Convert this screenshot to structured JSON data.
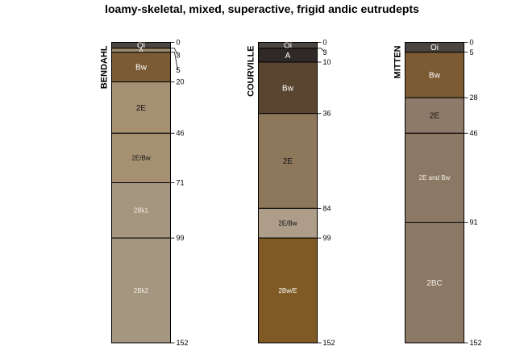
{
  "title": "loamy-skeletal, mixed, superactive, frigid andic eutrudepts",
  "depth_max_cm": 152,
  "profiles": [
    {
      "name": "BENDAHL",
      "horizons": [
        {
          "name": "Oi",
          "top": 0,
          "bottom": 3,
          "color": "#4a4541"
        },
        {
          "name": "A",
          "top": 3,
          "bottom": 5,
          "color": "#9f8c6e"
        },
        {
          "name": "Bw",
          "top": 5,
          "bottom": 20,
          "color": "#7b5a34"
        },
        {
          "name": "2E",
          "top": 20,
          "bottom": 46,
          "color": "#a69072"
        },
        {
          "name": "2E/Bw",
          "top": 46,
          "bottom": 71,
          "color": "#a69072"
        },
        {
          "name": "2Bk1",
          "top": 71,
          "bottom": 99,
          "color": "#a5967f"
        },
        {
          "name": "2Bk2",
          "top": 99,
          "bottom": 152,
          "color": "#a5967f"
        }
      ],
      "depth_labels": [
        {
          "label": "0",
          "depth": 0,
          "text_depth": 0
        },
        {
          "label": "3",
          "depth": 3,
          "text_depth": 6.5
        },
        {
          "label": "5",
          "depth": 5,
          "text_depth": 14
        },
        {
          "label": "20",
          "depth": 20,
          "text_depth": 20
        },
        {
          "label": "46",
          "depth": 46,
          "text_depth": 46
        },
        {
          "label": "71",
          "depth": 71,
          "text_depth": 71
        },
        {
          "label": "99",
          "depth": 99,
          "text_depth": 99
        },
        {
          "label": "152",
          "depth": 152,
          "text_depth": 152
        }
      ]
    },
    {
      "name": "COURVILLE",
      "horizons": [
        {
          "name": "Oi",
          "top": 0,
          "bottom": 3,
          "color": "#4a4541"
        },
        {
          "name": "A",
          "top": 3,
          "bottom": 10,
          "color": "#2f2a27"
        },
        {
          "name": "Bw",
          "top": 10,
          "bottom": 36,
          "color": "#5a4530"
        },
        {
          "name": "2E",
          "top": 36,
          "bottom": 84,
          "color": "#8e785c"
        },
        {
          "name": "2E/Bw",
          "top": 84,
          "bottom": 99,
          "color": "#ad9d89"
        },
        {
          "name": "2Bw/E",
          "top": 99,
          "bottom": 152,
          "color": "#805a24"
        }
      ],
      "depth_labels": [
        {
          "label": "0",
          "depth": 0,
          "text_depth": 0
        },
        {
          "label": "3",
          "depth": 3,
          "text_depth": 5
        },
        {
          "label": "10",
          "depth": 10,
          "text_depth": 10
        },
        {
          "label": "36",
          "depth": 36,
          "text_depth": 36
        },
        {
          "label": "84",
          "depth": 84,
          "text_depth": 84
        },
        {
          "label": "99",
          "depth": 99,
          "text_depth": 99
        },
        {
          "label": "152",
          "depth": 152,
          "text_depth": 152
        }
      ]
    },
    {
      "name": "MITTEN",
      "horizons": [
        {
          "name": "Oi",
          "top": 0,
          "bottom": 5,
          "color": "#4a4541"
        },
        {
          "name": "Bw",
          "top": 5,
          "bottom": 28,
          "color": "#7b5a34"
        },
        {
          "name": "2E",
          "top": 28,
          "bottom": 46,
          "color": "#8e7a68"
        },
        {
          "name": "2E and Bw",
          "top": 46,
          "bottom": 91,
          "color": "#8b7966"
        },
        {
          "name": "2BC",
          "top": 91,
          "bottom": 152,
          "color": "#8b7966"
        }
      ],
      "depth_labels": [
        {
          "label": "0",
          "depth": 0,
          "text_depth": 0
        },
        {
          "label": "5",
          "depth": 5,
          "text_depth": 5
        },
        {
          "label": "28",
          "depth": 28,
          "text_depth": 28
        },
        {
          "label": "46",
          "depth": 46,
          "text_depth": 46
        },
        {
          "label": "91",
          "depth": 91,
          "text_depth": 91
        },
        {
          "label": "152",
          "depth": 152,
          "text_depth": 152
        }
      ]
    }
  ]
}
